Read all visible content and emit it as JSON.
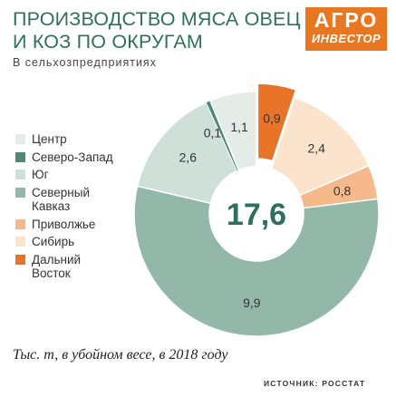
{
  "header": {
    "title_line1": "ПРОИЗВОДСТВО МЯСА ОВЕЦ",
    "title_line2": "И КОЗ ПО ОКРУГАМ",
    "subtitle": "В сельхозпредприятиях"
  },
  "logo": {
    "line1": "АГРО",
    "line2": "ИНВЕСТОР"
  },
  "footnote": "Тыс. т, в убойном весе, в 2018 году",
  "source": "ИСТОЧНИК: РОССТАТ",
  "chart_data": {
    "type": "pie",
    "title": "ПРОИЗВОДСТВО МЯСА ОВЕЦ И КОЗ ПО ОКРУГАМ",
    "subtitle": "В сельхозпредприятиях",
    "total_label": "17,6",
    "unit": "Тыс. т, в убойном весе, в 2018 году",
    "legend_position": "left",
    "slices": [
      {
        "name": "Дальний Восток",
        "legend_label": [
          "Дальний",
          "Восток"
        ],
        "value": 0.9,
        "label": "0,9",
        "color": "#e8742a"
      },
      {
        "name": "Сибирь",
        "legend_label": [
          "Сибирь"
        ],
        "value": 2.4,
        "label": "2,4",
        "color": "#fbe3cd"
      },
      {
        "name": "Приволжье",
        "legend_label": [
          "Приволжье"
        ],
        "value": 0.8,
        "label": "0,8",
        "color": "#f6b98c"
      },
      {
        "name": "Северный Кавказ",
        "legend_label": [
          "Северный",
          "Кавказ"
        ],
        "value": 9.9,
        "label": "9,9",
        "color": "#93b8a9"
      },
      {
        "name": "Юг",
        "legend_label": [
          "Юг"
        ],
        "value": 2.6,
        "label": "2,6",
        "color": "#cfe0d9"
      },
      {
        "name": "Северо-Запад",
        "legend_label": [
          "Северо-Запад"
        ],
        "value": 0.1,
        "label": "0,1",
        "color": "#4f8777"
      },
      {
        "name": "Центр",
        "legend_label": [
          "Центр"
        ],
        "value": 1.1,
        "label": "1,1",
        "color": "#e4ece8"
      }
    ],
    "legend_order": [
      "Центр",
      "Северо-Запад",
      "Юг",
      "Северный Кавказ",
      "Приволжье",
      "Сибирь",
      "Дальний Восток"
    ]
  }
}
